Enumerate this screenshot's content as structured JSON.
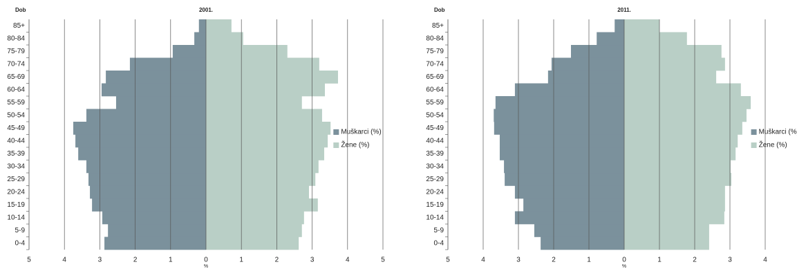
{
  "chart_data": [
    {
      "type": "hbar",
      "title": "2001.",
      "ylabel": "Dob",
      "xlabel": "%",
      "categories": [
        "0-4",
        "5-9",
        "10-14",
        "15-19",
        "20-24",
        "25-29",
        "30-34",
        "35-39",
        "40-44",
        "45-49",
        "50-54",
        "55-59",
        "60-64",
        "65-69",
        "70-74",
        "75-79",
        "80-84",
        "85+"
      ],
      "series": [
        {
          "name": "Muškarci (%)",
          "color": "#7b919c",
          "values": [
            -2.87,
            -2.77,
            -2.93,
            -3.22,
            -3.28,
            -3.32,
            -3.38,
            -3.61,
            -3.69,
            -3.75,
            -3.38,
            -2.54,
            -2.95,
            -2.83,
            -2.15,
            -0.94,
            -0.33,
            -0.2
          ]
        },
        {
          "name": "Žene (%)",
          "color": "#b9cfc6",
          "values": [
            2.62,
            2.71,
            2.77,
            3.16,
            2.91,
            3.09,
            3.18,
            3.34,
            3.44,
            3.52,
            3.28,
            2.71,
            3.36,
            3.73,
            3.2,
            2.3,
            1.05,
            0.72
          ]
        }
      ],
      "xlim": [
        -5,
        5
      ],
      "xticks": [
        {
          "value": -5,
          "label": "5"
        },
        {
          "value": -4,
          "label": "4"
        },
        {
          "value": -3,
          "label": "3"
        },
        {
          "value": -2,
          "label": "2"
        },
        {
          "value": -1,
          "label": "1"
        },
        0,
        1,
        2,
        3,
        4,
        5
      ],
      "grid": true,
      "legend": "right"
    },
    {
      "type": "hbar",
      "title": "2011.",
      "ylabel": "Dob",
      "xlabel": "%",
      "categories": [
        "0-4",
        "5-9",
        "10-14",
        "15-19",
        "20-24",
        "25-29",
        "30-34",
        "35-39",
        "40-44",
        "45-49",
        "50-54",
        "55-59",
        "60-64",
        "65-69",
        "70-74",
        "75-79",
        "80-84",
        "85+"
      ],
      "series": [
        {
          "name": "Muškarci (%)",
          "color": "#7b919c",
          "values": [
            -2.37,
            -2.55,
            -3.1,
            -2.86,
            -3.1,
            -3.39,
            -3.41,
            -3.53,
            -3.53,
            -3.69,
            -3.7,
            -3.65,
            -3.1,
            -2.16,
            -2.06,
            -1.51,
            -0.78,
            -0.27
          ]
        },
        {
          "name": "Žene (%)",
          "color": "#b9cfc6",
          "values": [
            2.41,
            2.41,
            2.84,
            2.86,
            2.86,
            3.04,
            3.02,
            3.16,
            3.22,
            3.35,
            3.47,
            3.59,
            3.31,
            2.61,
            2.86,
            2.76,
            1.78,
            1.0
          ]
        }
      ],
      "xlim": [
        -5,
        5
      ],
      "xticks": [
        {
          "value": -5,
          "label": "5"
        },
        {
          "value": -4,
          "label": "4"
        },
        {
          "value": -3,
          "label": "3"
        },
        {
          "value": -2,
          "label": "2"
        },
        {
          "value": -1,
          "label": "1"
        },
        0,
        1,
        2,
        3,
        4
      ],
      "grid": true,
      "legend": "right"
    }
  ]
}
